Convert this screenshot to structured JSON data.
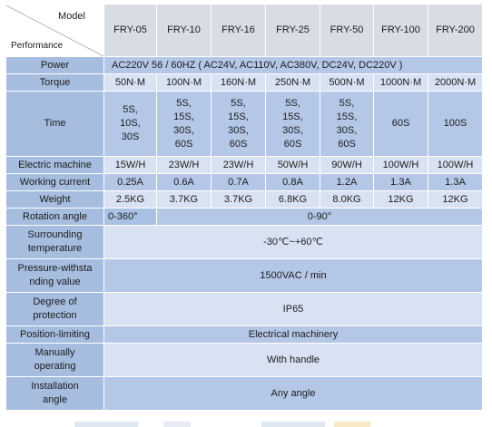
{
  "header": {
    "corner_model": "Model",
    "corner_performance": "Performance",
    "models": [
      "FRY-05",
      "FRY-10",
      "FRY-16",
      "FRY-25",
      "FRY-50",
      "FRY-100",
      "FRY-200"
    ]
  },
  "rows": {
    "power": {
      "label": "Power",
      "value": "AC220V  56 / 60HZ ( AC24V,  AC110V,  AC380V,  DC24V,  DC220V )"
    },
    "torque": {
      "label": "Torque",
      "values": [
        "50N·M",
        "100N·M",
        "160N·M",
        "250N·M",
        "500N·M",
        "1000N·M",
        "2000N·M"
      ]
    },
    "time": {
      "label": "Time",
      "values": [
        [
          "5S,",
          "10S,",
          "30S"
        ],
        [
          "5S,",
          "15S,",
          "30S,",
          "60S"
        ],
        [
          "5S,",
          "15S,",
          "30S,",
          "60S"
        ],
        [
          "5S,",
          "15S,",
          "30S,",
          "60S"
        ],
        [
          "5S,",
          "15S,",
          "30S,",
          "60S"
        ],
        [
          "60S"
        ],
        [
          "100S"
        ]
      ]
    },
    "electric_machine": {
      "label": "Electric machine",
      "values": [
        "15W/H",
        "23W/H",
        "23W/H",
        "50W/H",
        "90W/H",
        "100W/H",
        "100W/H"
      ]
    },
    "working_current": {
      "label": "Working current",
      "values": [
        "0.25A",
        "0.6A",
        "0.7A",
        "0.8A",
        "1.2A",
        "1.3A",
        "1.3A"
      ]
    },
    "weight": {
      "label": "Weight",
      "values": [
        "2.5KG",
        "3.7KG",
        "3.7KG",
        "6.8KG",
        "8.0KG",
        "12KG",
        "12KG"
      ]
    },
    "rotation_angle": {
      "label": "Rotation angle",
      "value_first": "0-360°",
      "value_rest": "0-90°"
    },
    "surrounding_temperature": {
      "label": [
        "Surrounding",
        "temperature"
      ],
      "value": "-30℃~+60℃"
    },
    "pressure_withstanding": {
      "label": [
        "Pressure-withsta",
        "nding value"
      ],
      "value": "1500VAC / min"
    },
    "protection": {
      "label": [
        "Degree of",
        "protection"
      ],
      "value": "IP65"
    },
    "position_limiting": {
      "label": "Position-limiting",
      "value": "Electrical machinery"
    },
    "manual_operating": {
      "label": [
        "Manually",
        "operating"
      ],
      "value": "With handle"
    },
    "installation_angle": {
      "label": [
        "Installation",
        "angle"
      ],
      "value": "Any angle"
    }
  }
}
